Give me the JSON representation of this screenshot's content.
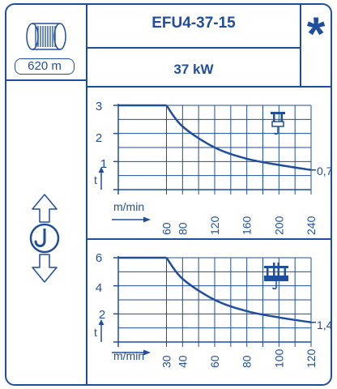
{
  "cable_length": "620 m",
  "model": "EFU4-37-15",
  "power": "37 kW",
  "marker": "*",
  "charts": [
    {
      "type": "line",
      "y_ticks": [
        "3",
        "2",
        "1"
      ],
      "y_unit": "t",
      "x_unit": "m/min",
      "x_ticks": [
        "60",
        "80",
        "120",
        "160",
        "200",
        "240"
      ],
      "end_label": "0,7",
      "icon": "single-hook-trolley-icon"
    },
    {
      "type": "line",
      "y_ticks": [
        "6",
        "4",
        "2"
      ],
      "y_unit": "t",
      "x_unit": "m/min",
      "x_ticks": [
        "30",
        "40",
        "60",
        "80",
        "100",
        "120"
      ],
      "end_label": "1,4",
      "icon": "double-hook-trolley-icon"
    }
  ],
  "chart_data": [
    {
      "type": "line",
      "x": [
        0,
        60,
        80,
        120,
        160,
        200,
        240
      ],
      "y": [
        3,
        3,
        2.25,
        1.5,
        1.1,
        0.88,
        0.7
      ],
      "xlim": [
        0,
        240
      ],
      "ylim": [
        0,
        3
      ],
      "xlabel": "m/min",
      "ylabel": "t",
      "x_ticks": [
        60,
        80,
        120,
        160,
        200,
        240
      ],
      "y_ticks": [
        1,
        2,
        3
      ],
      "annotation": "0,7",
      "grid": true
    },
    {
      "type": "line",
      "x": [
        0,
        30,
        40,
        60,
        80,
        100,
        120
      ],
      "y": [
        6,
        6,
        4.5,
        3.0,
        2.2,
        1.75,
        1.4
      ],
      "xlim": [
        0,
        120
      ],
      "ylim": [
        0,
        6
      ],
      "xlabel": "m/min",
      "ylabel": "t",
      "x_ticks": [
        30,
        40,
        60,
        80,
        100,
        120
      ],
      "y_ticks": [
        2,
        4,
        6
      ],
      "annotation": "1,4",
      "grid": true
    }
  ],
  "colors": {
    "ink": "#1f4e9c",
    "background": "#ffffff"
  },
  "icons": [
    "cable-drum-icon",
    "hoist-up-down-icon"
  ]
}
